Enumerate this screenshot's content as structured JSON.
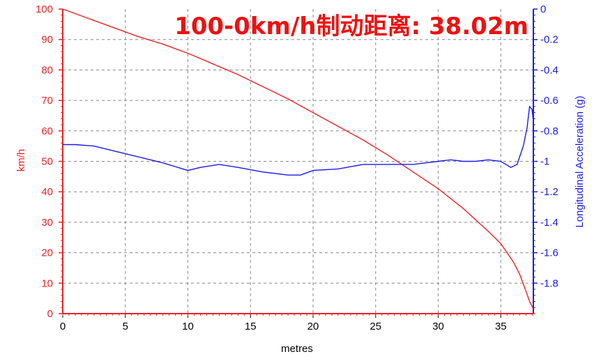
{
  "chart_data": {
    "type": "line",
    "annotation": "100-0km/h制动距离: 38.02m",
    "xlabel": "metres",
    "ylabel_left": "km/h",
    "ylabel_right": "Longitudinal Acceleration (g)",
    "xlim": [
      0,
      37.6
    ],
    "ylim_left": [
      0,
      100
    ],
    "ylim_right": [
      -2,
      0
    ],
    "x_ticks": [
      "0",
      "5",
      "10",
      "15",
      "20",
      "25",
      "30",
      "35"
    ],
    "y_left_ticks": [
      "0",
      "10",
      "20",
      "30",
      "40",
      "50",
      "60",
      "70",
      "80",
      "90",
      "100"
    ],
    "y_right_ticks": [
      "0",
      "-0.2",
      "-0.4",
      "-0.6",
      "-0.8",
      "-1",
      "-1.2",
      "-1.4",
      "-1.6",
      "-1.8"
    ],
    "grid": true,
    "colors": {
      "speed": "#ee2222",
      "accel": "#1a1aee",
      "annotation": "#ee1111"
    },
    "series": [
      {
        "axis": "left",
        "x": [
          0,
          2,
          4,
          6,
          8,
          10,
          12,
          14,
          16,
          18,
          20,
          22,
          24,
          26,
          28,
          30,
          32,
          34,
          35,
          36,
          36.5,
          37,
          37.3,
          37.6
        ],
        "values": [
          100,
          97,
          94,
          91,
          88.5,
          85.5,
          82,
          78.5,
          74.5,
          70.5,
          66,
          61.5,
          57,
          52,
          46.5,
          41,
          34.5,
          27,
          23,
          17,
          13,
          7.5,
          4,
          1.5
        ]
      },
      {
        "axis": "right",
        "x": [
          0,
          1,
          2.5,
          4,
          6,
          8,
          10,
          11,
          12.5,
          14,
          16,
          18,
          19,
          20,
          22,
          24,
          26,
          28,
          29,
          30,
          31,
          32,
          33,
          34,
          35,
          35.8,
          36.3,
          36.8,
          37.1,
          37.3,
          37.5,
          37.6
        ],
        "values": [
          -0.89,
          -0.89,
          -0.9,
          -0.93,
          -0.97,
          -1.01,
          -1.06,
          -1.04,
          -1.02,
          -1.04,
          -1.07,
          -1.09,
          -1.09,
          -1.06,
          -1.05,
          -1.02,
          -1.02,
          -1.02,
          -1.01,
          -1.0,
          -0.99,
          -1.0,
          -1.0,
          -0.99,
          -1.0,
          -1.04,
          -1.02,
          -0.9,
          -0.78,
          -0.64,
          -0.66,
          -0.74
        ]
      }
    ]
  }
}
